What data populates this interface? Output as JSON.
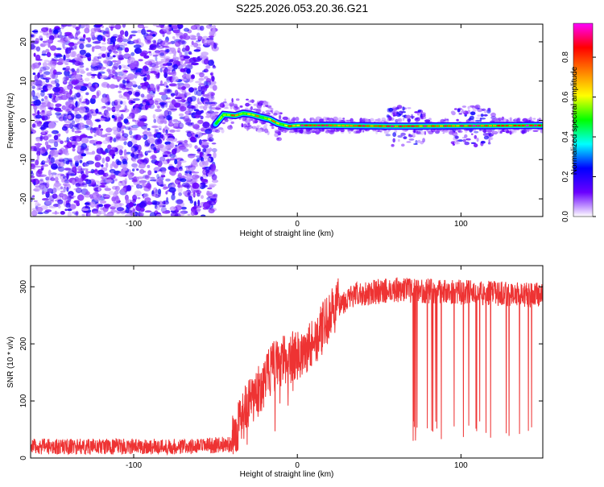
{
  "title": "S225.2026.053.20.36.G21",
  "chart_data": [
    {
      "type": "heatmap",
      "xlabel": "Height of straight line (km)",
      "ylabel": "Frequency (Hz)",
      "xlim": [
        -163,
        150
      ],
      "ylim": [
        -24.5,
        24.5
      ],
      "x_ticks": [
        -100,
        0,
        100
      ],
      "y_ticks": [
        -20,
        -10,
        0,
        10,
        20
      ],
      "x_tick_labels": [
        "-100",
        "0",
        "100"
      ],
      "y_tick_labels": [
        "-20",
        "-10",
        "0",
        "10",
        "20"
      ],
      "noise_region_x": [
        -163,
        -50
      ],
      "signal_start_x": -50,
      "ridge": [
        {
          "x": -50,
          "y": -1.0
        },
        {
          "x": -45,
          "y": 1.5
        },
        {
          "x": -38,
          "y": 1.2
        },
        {
          "x": -33,
          "y": 1.8
        },
        {
          "x": -28,
          "y": 1.5
        },
        {
          "x": -22,
          "y": 0.8
        },
        {
          "x": -17,
          "y": 0.3
        },
        {
          "x": -12,
          "y": -0.8
        },
        {
          "x": -5,
          "y": -1.5
        },
        {
          "x": 0,
          "y": -1.3
        },
        {
          "x": 20,
          "y": -1.3
        },
        {
          "x": 60,
          "y": -1.5
        },
        {
          "x": 100,
          "y": -1.4
        },
        {
          "x": 150,
          "y": -1.3
        }
      ],
      "colorbar": {
        "label": "Normalized spectral amplitude",
        "range": [
          0,
          0.97
        ],
        "ticks": [
          0.0,
          0.2,
          0.4,
          0.6,
          0.8
        ],
        "tick_labels": [
          "0.0",
          "0.2",
          "0.4",
          "0.6",
          "0.8"
        ],
        "colors": [
          "#ffffff",
          "#6a00ff",
          "#0000ff",
          "#00ffff",
          "#00ff00",
          "#ffff00",
          "#ff8000",
          "#ff0000",
          "#ff00ff"
        ]
      }
    },
    {
      "type": "line",
      "xlabel": "Height of straight line (km)",
      "ylabel": "SNR (10 * v/v)",
      "xlim": [
        -163,
        150
      ],
      "ylim": [
        0,
        337
      ],
      "x_ticks": [
        -100,
        0,
        100
      ],
      "y_ticks": [
        0,
        100,
        200,
        300
      ],
      "x_tick_labels": [
        "-100",
        "0",
        "100"
      ],
      "y_tick_labels": [
        "0",
        "100",
        "200",
        "300"
      ],
      "color": "#ee3333",
      "envelope": [
        {
          "x": -163,
          "y": 20
        },
        {
          "x": -60,
          "y": 20
        },
        {
          "x": -40,
          "y": 25
        },
        {
          "x": -35,
          "y": 70
        },
        {
          "x": -25,
          "y": 110
        },
        {
          "x": -15,
          "y": 160
        },
        {
          "x": -5,
          "y": 175
        },
        {
          "x": 5,
          "y": 185
        },
        {
          "x": 15,
          "y": 225
        },
        {
          "x": 25,
          "y": 270
        },
        {
          "x": 35,
          "y": 285
        },
        {
          "x": 45,
          "y": 290
        },
        {
          "x": 60,
          "y": 295
        },
        {
          "x": 150,
          "y": 285
        }
      ],
      "dropout_region_x": [
        65,
        145
      ],
      "dropout_level": 25
    }
  ]
}
